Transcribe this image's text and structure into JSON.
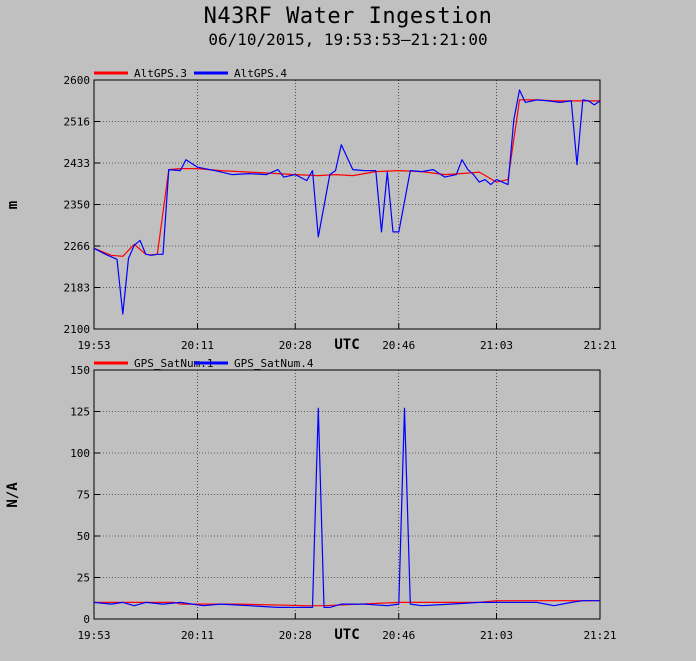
{
  "header": {
    "title": "N43RF Water Ingestion",
    "subtitle": "06/10/2015, 19:53:53–21:21:00"
  },
  "chart_data": [
    {
      "type": "line",
      "xlabel": "UTC",
      "ylabel": "m",
      "x_ticks": [
        "19:53",
        "20:11",
        "20:28",
        "20:46",
        "21:03",
        "21:21"
      ],
      "y_ticks": [
        "2100",
        "2183",
        "2266",
        "2350",
        "2433",
        "2516",
        "2600"
      ],
      "xlim": [
        "19:53",
        "21:21"
      ],
      "ylim": [
        2100,
        2600
      ],
      "grid": true,
      "legend_position": "top-left",
      "colors": {
        "AltGPS.3": "#ff0000",
        "AltGPS.4": "#0000ff"
      },
      "series": [
        {
          "name": "AltGPS.3",
          "x": [
            "19:53",
            "19:56",
            "19:58",
            "20:00",
            "20:02",
            "20:03",
            "20:04",
            "20:06",
            "20:08",
            "20:11",
            "20:15",
            "20:20",
            "20:25",
            "20:28",
            "20:32",
            "20:35",
            "20:38",
            "20:42",
            "20:46",
            "20:50",
            "20:54",
            "20:58",
            "21:00",
            "21:03",
            "21:05",
            "21:07",
            "21:10",
            "21:13",
            "21:15",
            "21:18",
            "21:21"
          ],
          "values": [
            2262,
            2248,
            2246,
            2270,
            2250,
            2249,
            2250,
            2420,
            2422,
            2422,
            2418,
            2415,
            2412,
            2410,
            2408,
            2410,
            2408,
            2416,
            2418,
            2416,
            2410,
            2413,
            2415,
            2395,
            2400,
            2560,
            2560,
            2558,
            2558,
            2558,
            2558
          ]
        },
        {
          "name": "AltGPS.4",
          "x": [
            "19:53",
            "19:55",
            "19:57",
            "19:58",
            "19:59",
            "20:00",
            "20:01",
            "20:02",
            "20:03",
            "20:04",
            "20:05",
            "20:06",
            "20:08",
            "20:09",
            "20:11",
            "20:14",
            "20:17",
            "20:20",
            "20:23",
            "20:25",
            "20:26",
            "20:28",
            "20:30",
            "20:31",
            "20:32",
            "20:34",
            "20:35",
            "20:36",
            "20:38",
            "20:40",
            "20:42",
            "20:43",
            "20:44",
            "20:45",
            "20:46",
            "20:48",
            "20:50",
            "20:52",
            "20:54",
            "20:56",
            "20:57",
            "20:58",
            "20:59",
            "21:00",
            "21:01",
            "21:02",
            "21:03",
            "21:04",
            "21:05",
            "21:06",
            "21:07",
            "21:08",
            "21:10",
            "21:12",
            "21:14",
            "21:16",
            "21:17",
            "21:18",
            "21:19",
            "21:20",
            "21:21"
          ],
          "values": [
            2262,
            2250,
            2240,
            2130,
            2242,
            2268,
            2278,
            2250,
            2248,
            2250,
            2250,
            2420,
            2418,
            2440,
            2425,
            2418,
            2410,
            2412,
            2410,
            2420,
            2405,
            2410,
            2398,
            2418,
            2285,
            2410,
            2418,
            2470,
            2420,
            2418,
            2418,
            2295,
            2415,
            2295,
            2295,
            2418,
            2416,
            2420,
            2405,
            2410,
            2440,
            2420,
            2410,
            2395,
            2400,
            2390,
            2400,
            2395,
            2390,
            2520,
            2580,
            2555,
            2560,
            2558,
            2555,
            2558,
            2430,
            2560,
            2558,
            2550,
            2558
          ]
        }
      ]
    },
    {
      "type": "line",
      "xlabel": "UTC",
      "ylabel": "N/A",
      "x_ticks": [
        "19:53",
        "20:11",
        "20:28",
        "20:46",
        "21:03",
        "21:21"
      ],
      "y_ticks": [
        "0",
        "25",
        "50",
        "75",
        "100",
        "125",
        "150"
      ],
      "xlim": [
        "19:53",
        "21:21"
      ],
      "ylim": [
        0,
        150
      ],
      "grid": true,
      "legend_position": "top-left",
      "colors": {
        "GPS_SatNum.1": "#ff0000",
        "GPS_SatNum.4": "#0000ff"
      },
      "series": [
        {
          "name": "GPS_SatNum.1",
          "x": [
            "19:53",
            "20:00",
            "20:07",
            "20:08",
            "20:18",
            "20:30",
            "20:33",
            "20:46",
            "21:00",
            "21:03",
            "21:10",
            "21:21"
          ],
          "values": [
            10,
            10,
            10,
            9,
            9,
            8,
            8,
            10,
            10,
            11,
            11,
            11
          ]
        },
        {
          "name": "GPS_SatNum.4",
          "x": [
            "19:53",
            "19:56",
            "19:58",
            "20:00",
            "20:02",
            "20:05",
            "20:08",
            "20:12",
            "20:15",
            "20:20",
            "20:25",
            "20:28",
            "20:31",
            "20:32",
            "20:33",
            "20:34",
            "20:36",
            "20:40",
            "20:44",
            "20:46",
            "20:47",
            "20:48",
            "20:50",
            "20:55",
            "21:00",
            "21:05",
            "21:10",
            "21:13",
            "21:16",
            "21:18",
            "21:21"
          ],
          "values": [
            10,
            9,
            10,
            8,
            10,
            9,
            10,
            8,
            9,
            8,
            7,
            7,
            7,
            127,
            7,
            7,
            9,
            9,
            8,
            9,
            127,
            9,
            8,
            9,
            10,
            10,
            10,
            8,
            10,
            11,
            11
          ]
        }
      ]
    }
  ]
}
